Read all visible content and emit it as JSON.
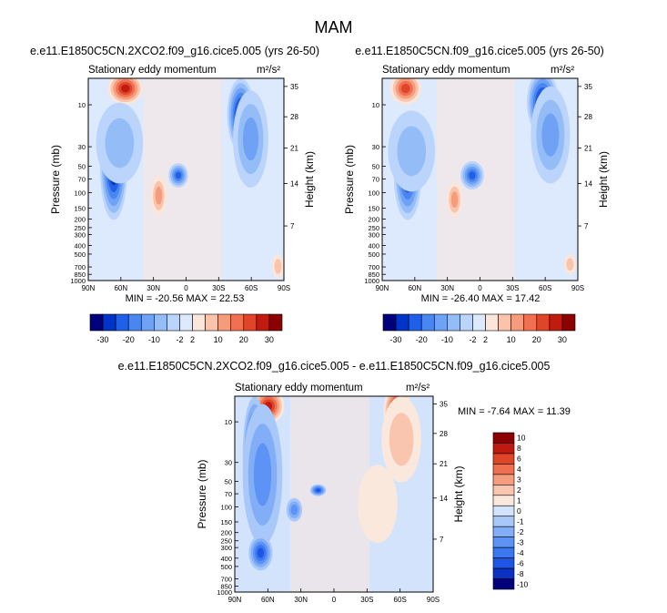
{
  "page": {
    "main_title": "MAM"
  },
  "palette": {
    "top": [
      "#00007d",
      "#0033c8",
      "#2060e8",
      "#4a86f0",
      "#6fa2f5",
      "#94bdf8",
      "#bad4fb",
      "#dde9fc",
      "#fbe6dc",
      "#fac3ab",
      "#f59c7c",
      "#ef7052",
      "#e0452a",
      "#c11b10",
      "#8c0000"
    ],
    "diff": [
      "#00007d",
      "#0a30c4",
      "#1f55e6",
      "#3b78f0",
      "#5c93f4",
      "#82adf7",
      "#a9c8fa",
      "#d4e3fc",
      "#fbe8dd",
      "#f9c5ae",
      "#f49d7f",
      "#ee7050",
      "#e04528",
      "#c01a10",
      "#8c0000"
    ]
  },
  "chart_data": [
    {
      "type": "contour",
      "name": "panel-left",
      "title": "e.e11.E1850C5CN.2XCO2.f09_g16.cice5.005 (yrs 26-50)",
      "left_label": "Stationary eddy momentum",
      "units": "m²/s²",
      "ylabel": "Pressure (mb)",
      "ylabel_right": "Height (km)",
      "xticks": [
        "90N",
        "60N",
        "30N",
        "0",
        "30S",
        "60S",
        "90S"
      ],
      "yticks": [
        "10",
        "30",
        "50",
        "70",
        "100",
        "150",
        "200",
        "250",
        "300",
        "400",
        "500",
        "700",
        "850",
        "1000"
      ],
      "height_ticks": [
        "35",
        "28",
        "21",
        "14",
        "7"
      ],
      "min_label": "MIN = -20.56",
      "max_label": "MAX = 22.53",
      "min": -20.56,
      "max": 22.53,
      "colorbar_labels": [
        "-30",
        "-20",
        "-10",
        "-2",
        "2",
        "10",
        "20",
        "30"
      ]
    },
    {
      "type": "contour",
      "name": "panel-right",
      "title": "e.e11.E1850C5CN.f09_g16.cice5.005 (yrs 26-50)",
      "left_label": "Stationary eddy momentum",
      "units": "m²/s²",
      "ylabel": "Pressure (mb)",
      "ylabel_right": "Height (km)",
      "xticks": [
        "90N",
        "60N",
        "30N",
        "0",
        "30S",
        "60S",
        "90S"
      ],
      "yticks": [
        "10",
        "30",
        "50",
        "70",
        "100",
        "150",
        "200",
        "250",
        "300",
        "400",
        "500",
        "700",
        "850",
        "1000"
      ],
      "height_ticks": [
        "35",
        "28",
        "21",
        "14",
        "7"
      ],
      "min_label": "MIN = -26.40",
      "max_label": "MAX = 17.42",
      "min": -26.4,
      "max": 17.42,
      "colorbar_labels": [
        "-30",
        "-20",
        "-10",
        "-2",
        "2",
        "10",
        "20",
        "30"
      ]
    },
    {
      "type": "contour",
      "name": "panel-diff",
      "title": "e.e11.E1850C5CN.2XCO2.f09_g16.cice5.005 - e.e11.E1850C5CN.f09_g16.cice5.005",
      "left_label": "Stationary eddy momentum",
      "units": "m²/s²",
      "ylabel": "Pressure (mb)",
      "ylabel_right": "Height (km)",
      "xticks": [
        "90N",
        "60N",
        "30N",
        "0",
        "30S",
        "60S",
        "90S"
      ],
      "yticks": [
        "10",
        "30",
        "50",
        "70",
        "100",
        "150",
        "200",
        "250",
        "300",
        "400",
        "500",
        "700",
        "850",
        "1000"
      ],
      "height_ticks": [
        "35",
        "28",
        "21",
        "14",
        "7"
      ],
      "minmax_label": "MIN = -7.64  MAX = 11.39",
      "min": -7.64,
      "max": 11.39,
      "colorbar_labels": [
        "10",
        "8",
        "6",
        "4",
        "3",
        "2",
        "1",
        "0",
        "-1",
        "-2",
        "-3",
        "-4",
        "-6",
        "-8",
        "-10"
      ]
    }
  ]
}
